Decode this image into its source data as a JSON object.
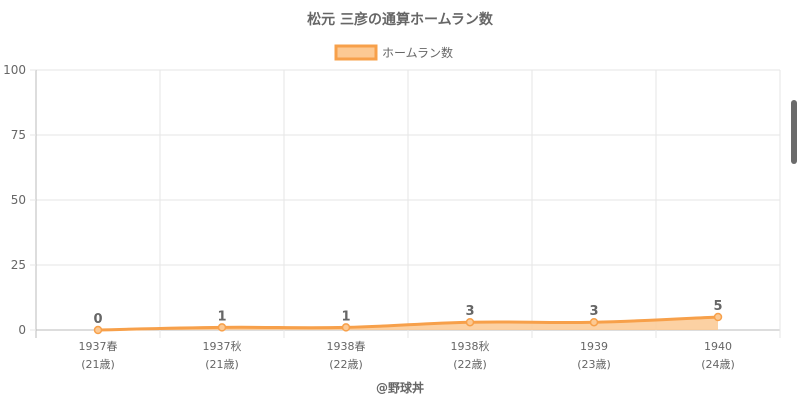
{
  "chart_data": {
    "type": "line",
    "title": "松元 三彦の通算ホームラン数",
    "legend": {
      "label": "ホームラン数",
      "placement": "top-center"
    },
    "categories": [
      [
        "1937春",
        "(21歳)"
      ],
      [
        "1937秋",
        "(21歳)"
      ],
      [
        "1938春",
        "(22歳)"
      ],
      [
        "1938秋",
        "(22歳)"
      ],
      [
        "1939",
        "(23歳)"
      ],
      [
        "1940",
        "(24歳)"
      ]
    ],
    "series": [
      {
        "name": "ホームラン数",
        "values": [
          0,
          1,
          1,
          3,
          3,
          5
        ]
      }
    ],
    "ylim": [
      0,
      100
    ],
    "yticks": [
      0,
      25,
      50,
      75,
      100
    ],
    "grid": true,
    "fill": true,
    "colors": {
      "line": "#f7a04a",
      "fill": "#fcc993",
      "point": "#f7a04a"
    },
    "credit": "@野球丼"
  }
}
